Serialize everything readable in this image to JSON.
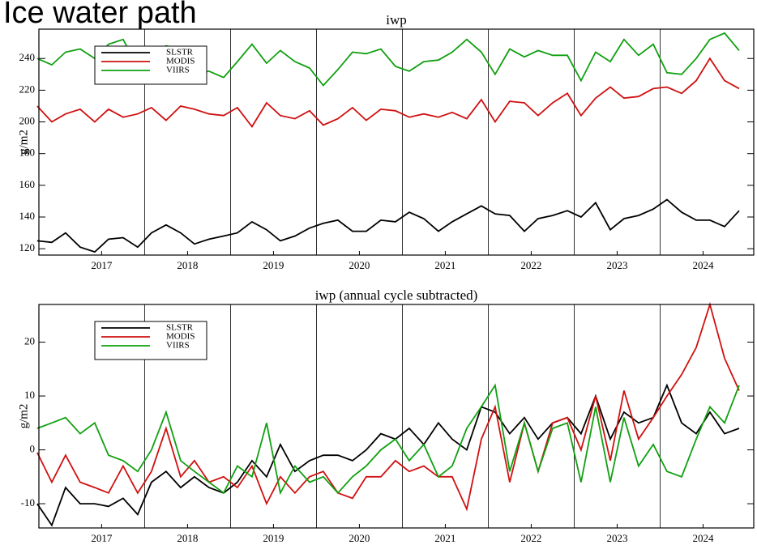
{
  "page_title": "Ice water path",
  "chart_data": [
    {
      "type": "line",
      "title": "iwp",
      "ylabel": "g/m2",
      "legend": "upper left",
      "x": [
        2016.75,
        2016.92,
        2017.08,
        2017.25,
        2017.42,
        2017.58,
        2017.75,
        2017.92,
        2018.08,
        2018.25,
        2018.42,
        2018.58,
        2018.75,
        2018.92,
        2019.08,
        2019.25,
        2019.42,
        2019.58,
        2019.75,
        2019.92,
        2020.08,
        2020.25,
        2020.42,
        2020.58,
        2020.75,
        2020.92,
        2021.08,
        2021.25,
        2021.42,
        2021.58,
        2021.75,
        2021.92,
        2022.08,
        2022.25,
        2022.42,
        2022.58,
        2022.75,
        2022.92,
        2023.08,
        2023.25,
        2023.42,
        2023.58,
        2023.75,
        2023.92,
        2024.08,
        2024.25,
        2024.42,
        2024.58,
        2024.75,
        2024.92
      ],
      "xlim": [
        2016.77,
        2025.09
      ],
      "xticks": [
        {
          "value": 2017.5,
          "label": "2017"
        },
        {
          "value": 2018.5,
          "label": "2018"
        },
        {
          "value": 2019.5,
          "label": "2019"
        },
        {
          "value": 2020.5,
          "label": "2020"
        },
        {
          "value": 2021.5,
          "label": "2021"
        },
        {
          "value": 2022.5,
          "label": "2022"
        },
        {
          "value": 2023.5,
          "label": "2023"
        },
        {
          "value": 2024.5,
          "label": "2024"
        }
      ],
      "vlines": [
        2018,
        2019,
        2020,
        2021,
        2022,
        2023,
        2024
      ],
      "ylim": [
        116,
        258.5
      ],
      "yticks": [
        120,
        140,
        160,
        180,
        200,
        220,
        240
      ],
      "series": [
        {
          "name": "SLSTR",
          "color": "#000000",
          "values": [
            125,
            124,
            130,
            121,
            118,
            126,
            127,
            121,
            130,
            135,
            130,
            123,
            126,
            128,
            130,
            137,
            132,
            125,
            128,
            133,
            136,
            138,
            131,
            131,
            138,
            137,
            143,
            139,
            131,
            137,
            142,
            147,
            142,
            141,
            131,
            139,
            141,
            144,
            140,
            149,
            132,
            139,
            141,
            145,
            151,
            143,
            138,
            138,
            134,
            144
          ]
        },
        {
          "name": "MODIS",
          "color": "#d01010",
          "values": [
            210,
            200,
            205,
            208,
            200,
            208,
            203,
            205,
            209,
            201,
            210,
            208,
            205,
            204,
            209,
            197,
            212,
            204,
            202,
            207,
            198,
            202,
            209,
            201,
            208,
            207,
            203,
            205,
            203,
            206,
            202,
            214,
            200,
            213,
            212,
            204,
            212,
            218,
            204,
            215,
            222,
            215,
            216,
            221,
            222,
            218,
            226,
            240,
            226,
            221
          ]
        },
        {
          "name": "VIIRS",
          "color": "#10a010",
          "values": [
            240,
            236,
            244,
            246,
            240,
            249,
            252,
            235,
            242,
            248,
            246,
            230,
            232,
            228,
            238,
            249,
            237,
            245,
            238,
            234,
            223,
            233,
            244,
            243,
            246,
            235,
            232,
            238,
            239,
            244,
            252,
            244,
            230,
            246,
            241,
            245,
            242,
            242,
            226,
            244,
            238,
            252,
            242,
            249,
            231,
            230,
            240,
            252,
            256,
            245
          ]
        }
      ]
    },
    {
      "type": "line",
      "title": "iwp (annual cycle subtracted)",
      "ylabel": "g/m2",
      "legend": "upper left",
      "x": [
        2016.75,
        2016.92,
        2017.08,
        2017.25,
        2017.42,
        2017.58,
        2017.75,
        2017.92,
        2018.08,
        2018.25,
        2018.42,
        2018.58,
        2018.75,
        2018.92,
        2019.08,
        2019.25,
        2019.42,
        2019.58,
        2019.75,
        2019.92,
        2020.08,
        2020.25,
        2020.42,
        2020.58,
        2020.75,
        2020.92,
        2021.08,
        2021.25,
        2021.42,
        2021.58,
        2021.75,
        2021.92,
        2022.08,
        2022.25,
        2022.42,
        2022.58,
        2022.75,
        2022.92,
        2023.08,
        2023.25,
        2023.42,
        2023.58,
        2023.75,
        2023.92,
        2024.08,
        2024.25,
        2024.42,
        2024.58,
        2024.75,
        2024.92
      ],
      "xlim": [
        2016.77,
        2025.09
      ],
      "xticks": [
        {
          "value": 2017.5,
          "label": "2017"
        },
        {
          "value": 2018.5,
          "label": "2018"
        },
        {
          "value": 2019.5,
          "label": "2019"
        },
        {
          "value": 2020.5,
          "label": "2020"
        },
        {
          "value": 2021.5,
          "label": "2021"
        },
        {
          "value": 2022.5,
          "label": "2022"
        },
        {
          "value": 2023.5,
          "label": "2023"
        },
        {
          "value": 2024.5,
          "label": "2024"
        }
      ],
      "vlines": [
        2018,
        2019,
        2020,
        2021,
        2022,
        2023,
        2024
      ],
      "ylim": [
        -14.5,
        27
      ],
      "yticks": [
        -10,
        0,
        10,
        20
      ],
      "series": [
        {
          "name": "SLSTR",
          "color": "#000000",
          "values": [
            -10,
            -14,
            -7,
            -10,
            -10,
            -10.5,
            -9,
            -12,
            -6,
            -4,
            -7,
            -5,
            -7,
            -8,
            -6,
            -2,
            -5,
            1,
            -4,
            -2,
            -1,
            -1,
            -2,
            0,
            3,
            2,
            4,
            1,
            5,
            2,
            0,
            8,
            7,
            3,
            6,
            2,
            5,
            6,
            3,
            10,
            2,
            7,
            5,
            6,
            12,
            5,
            3,
            7,
            3,
            4
          ]
        },
        {
          "name": "MODIS",
          "color": "#d01010",
          "values": [
            -0.5,
            -6,
            -1,
            -6,
            -7,
            -8,
            -3,
            -8,
            -4,
            4,
            -5,
            -2,
            -6,
            -5,
            -7,
            -3,
            -10,
            -5,
            -8,
            -5,
            -4,
            -8,
            -9,
            -5,
            -5,
            -2,
            -4,
            -3,
            -5,
            -5,
            -11,
            2,
            8,
            -6,
            5,
            -4,
            5,
            6,
            0,
            10,
            -2,
            11,
            2,
            6,
            10,
            14,
            19,
            27,
            17,
            11
          ]
        },
        {
          "name": "VIIRS",
          "color": "#10a010",
          "values": [
            4,
            5,
            6,
            3,
            5,
            -1,
            -2,
            -4,
            0,
            7,
            -2,
            -4,
            -6,
            -8,
            -3,
            -5,
            5,
            -8,
            -3,
            -6,
            -5,
            -8,
            -5,
            -3,
            0,
            2,
            -2,
            1,
            -5,
            -3,
            4,
            8,
            12,
            -4,
            5,
            -4,
            4,
            5,
            -6,
            8,
            -6,
            6,
            -3,
            1,
            -4,
            -5,
            2,
            8,
            5,
            12
          ]
        }
      ]
    }
  ]
}
